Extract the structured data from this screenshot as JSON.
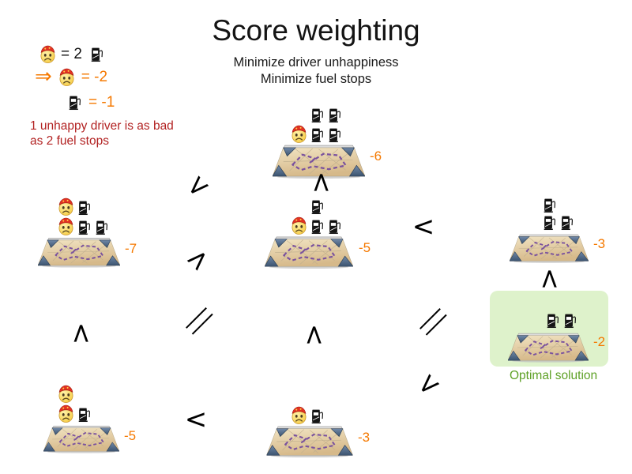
{
  "title": "Score weighting",
  "subtitle": {
    "line1": "Minimize driver unhappiness",
    "line2": "Minimize fuel stops"
  },
  "legend": {
    "equals_two": "= 2",
    "arrow": "⇒",
    "driver_weight": "= -2",
    "fuel_weight": "= -1",
    "note_line1": "1 unhappy driver is as bad",
    "note_line2": "as 2 fuel stops"
  },
  "nodes": [
    {
      "id": "top",
      "score": "-6",
      "icon_rows": [
        [
          "spacer",
          "fuel",
          "fuel"
        ],
        [
          "driver",
          "fuel",
          "fuel"
        ]
      ]
    },
    {
      "id": "mid-left",
      "score": "-7",
      "icon_rows": [
        [
          "driver",
          "fuel"
        ],
        [
          "driver",
          "fuel",
          "fuel"
        ]
      ]
    },
    {
      "id": "mid-center",
      "score": "-5",
      "icon_rows": [
        [
          "spacer",
          "fuel"
        ],
        [
          "driver",
          "fuel",
          "fuel"
        ]
      ]
    },
    {
      "id": "mid-right",
      "score": "-3",
      "icon_rows": [
        [
          "fuel"
        ],
        [
          "fuel",
          "fuel"
        ]
      ]
    },
    {
      "id": "optimal",
      "score": "-2",
      "icon_rows": [
        [
          "fuel",
          "fuel"
        ]
      ]
    },
    {
      "id": "bottom-left",
      "score": "-5",
      "icon_rows": [
        [
          "driver"
        ],
        [
          "driver",
          "fuel"
        ]
      ]
    },
    {
      "id": "bottom-center",
      "score": "-3",
      "icon_rows": [
        [
          "driver",
          "fuel"
        ]
      ]
    }
  ],
  "optimal_label": "Optimal solution",
  "comparisons": [
    {
      "glyph": "<"
    },
    {
      "glyph": "<"
    },
    {
      "glyph": "<"
    },
    {
      "glyph": "<"
    },
    {
      "glyph": "∥"
    },
    {
      "glyph": "<"
    },
    {
      "glyph": "<"
    },
    {
      "glyph": "∥"
    },
    {
      "glyph": "<"
    },
    {
      "glyph": "<"
    },
    {
      "glyph": "<"
    }
  ],
  "colors": {
    "accent_orange": "#f57900",
    "note_red": "#b22222",
    "optimal_green": "#5ea126",
    "optimal_bg": "#def2cb",
    "route_purple": "#7a529e"
  }
}
